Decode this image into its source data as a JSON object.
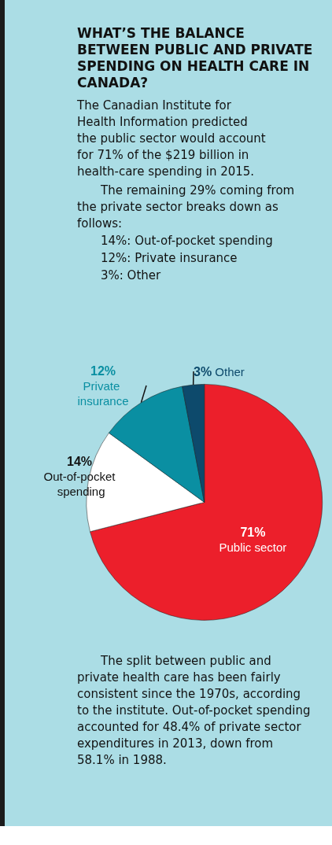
{
  "chart_data": {
    "type": "pie",
    "title": "WHAT’S THE BALANCE BETWEEN PUBLIC AND PRIVATE SPENDING ON HEALTH CARE IN CANADA?",
    "annotations": [
      "The Canadian Institute for Health Information predicted the public sector would account for 71% of the $219 billion in health-care spending in 2015.",
      "The remaining 29% coming from the private sector breaks down as follows:",
      "14%: Out-of-pocket spending",
      "12%: Private insurance",
      "3%: Other",
      "The split between public and private health care has been fairly consistent since the 1970s, according to the institute. Out-of-pocket spending accounted for 48.4% of private sector expenditures in 2013, down from 58.1% in 1988."
    ],
    "categories": [
      "Public sector",
      "Out-of-pocket spending",
      "Private insurance",
      "Other"
    ],
    "values": [
      71,
      14,
      12,
      3
    ],
    "value_labels": [
      "71%",
      "14%",
      "12%",
      "3%"
    ],
    "colors": [
      "#ec1f2b",
      "#ffffff",
      "#0a8fa2",
      "#0d4a6c"
    ]
  }
}
